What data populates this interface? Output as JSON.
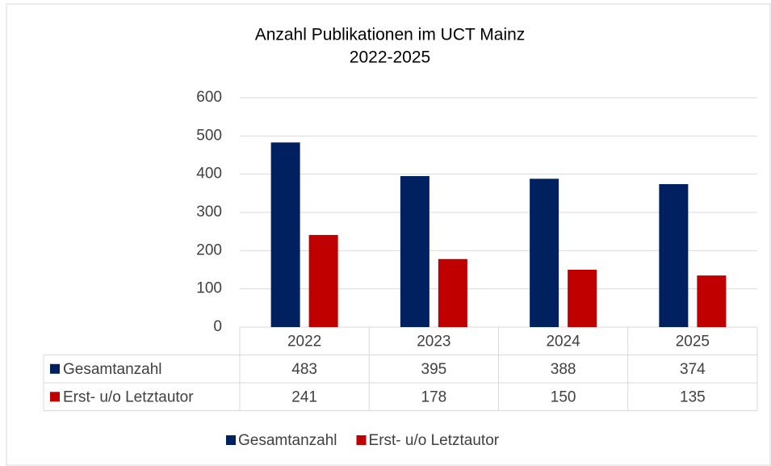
{
  "chart_data": {
    "type": "bar",
    "title": "Anzahl Publikationen im UCT Mainz",
    "subtitle": "2022-2025",
    "categories": [
      "2022",
      "2023",
      "2024",
      "2025"
    ],
    "series": [
      {
        "name": "Gesamtanzahl",
        "color": "#002060",
        "values": [
          483,
          395,
          388,
          374
        ]
      },
      {
        "name": "Erst- u/o Letztautor",
        "color": "#c00000",
        "values": [
          241,
          178,
          150,
          135
        ]
      }
    ],
    "ylim": [
      0,
      600
    ],
    "yticks": [
      0,
      100,
      200,
      300,
      400,
      500,
      600
    ],
    "grid": true,
    "legend": "bottom"
  }
}
